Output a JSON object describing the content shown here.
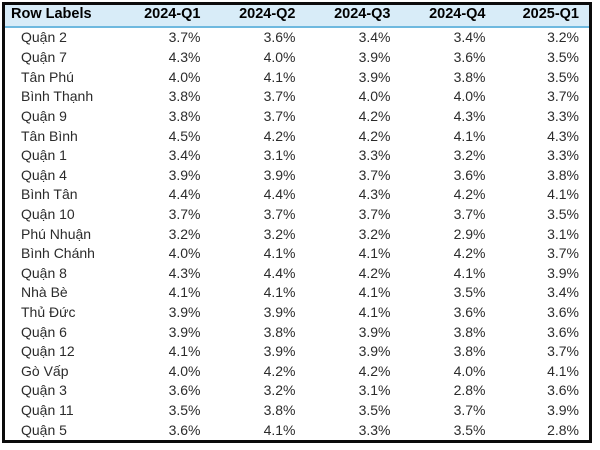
{
  "colors": {
    "header_bg": "#d8ecf8",
    "header_underline": "#6fb9df",
    "outer_border": "#0b0b0b",
    "header_text": "#000000",
    "body_text": "#2b2b2b",
    "background": "#ffffff"
  },
  "chart_data": {
    "type": "table",
    "title": "",
    "legend": false,
    "grid": false,
    "value_format": "percent",
    "columns": [
      "Row Labels",
      "2024-Q1",
      "2024-Q2",
      "2024-Q3",
      "2024-Q4",
      "2025-Q1"
    ],
    "rows": [
      {
        "label": "Quận 2",
        "values": [
          "3.7%",
          "3.6%",
          "3.4%",
          "3.4%",
          "3.2%"
        ]
      },
      {
        "label": "Quận 7",
        "values": [
          "4.3%",
          "4.0%",
          "3.9%",
          "3.6%",
          "3.5%"
        ]
      },
      {
        "label": "Tân Phú",
        "values": [
          "4.0%",
          "4.1%",
          "3.9%",
          "3.8%",
          "3.5%"
        ]
      },
      {
        "label": "Bình Thạnh",
        "values": [
          "3.8%",
          "3.7%",
          "4.0%",
          "4.0%",
          "3.7%"
        ]
      },
      {
        "label": "Quận 9",
        "values": [
          "3.8%",
          "3.7%",
          "4.2%",
          "4.3%",
          "3.3%"
        ]
      },
      {
        "label": "Tân Bình",
        "values": [
          "4.5%",
          "4.2%",
          "4.2%",
          "4.1%",
          "4.3%"
        ]
      },
      {
        "label": "Quận 1",
        "values": [
          "3.4%",
          "3.1%",
          "3.3%",
          "3.2%",
          "3.3%"
        ]
      },
      {
        "label": "Quận 4",
        "values": [
          "3.9%",
          "3.9%",
          "3.7%",
          "3.6%",
          "3.8%"
        ]
      },
      {
        "label": "Bình Tân",
        "values": [
          "4.4%",
          "4.4%",
          "4.3%",
          "4.2%",
          "4.1%"
        ]
      },
      {
        "label": "Quận 10",
        "values": [
          "3.7%",
          "3.7%",
          "3.7%",
          "3.7%",
          "3.5%"
        ]
      },
      {
        "label": "Phú Nhuận",
        "values": [
          "3.2%",
          "3.2%",
          "3.2%",
          "2.9%",
          "3.1%"
        ]
      },
      {
        "label": "Bình Chánh",
        "values": [
          "4.0%",
          "4.1%",
          "4.1%",
          "4.2%",
          "3.7%"
        ]
      },
      {
        "label": "Quận 8",
        "values": [
          "4.3%",
          "4.4%",
          "4.2%",
          "4.1%",
          "3.9%"
        ]
      },
      {
        "label": "Nhà Bè",
        "values": [
          "4.1%",
          "4.1%",
          "4.1%",
          "3.5%",
          "3.4%"
        ]
      },
      {
        "label": "Thủ Đức",
        "values": [
          "3.9%",
          "3.9%",
          "4.1%",
          "3.6%",
          "3.6%"
        ]
      },
      {
        "label": "Quận 6",
        "values": [
          "3.9%",
          "3.8%",
          "3.9%",
          "3.8%",
          "3.6%"
        ]
      },
      {
        "label": "Quận 12",
        "values": [
          "4.1%",
          "3.9%",
          "3.9%",
          "3.8%",
          "3.7%"
        ]
      },
      {
        "label": "Gò Vấp",
        "values": [
          "4.0%",
          "4.2%",
          "4.2%",
          "4.0%",
          "4.1%"
        ]
      },
      {
        "label": "Quận 3",
        "values": [
          "3.6%",
          "3.2%",
          "3.1%",
          "2.8%",
          "3.6%"
        ]
      },
      {
        "label": "Quận 11",
        "values": [
          "3.5%",
          "3.8%",
          "3.5%",
          "3.7%",
          "3.9%"
        ]
      },
      {
        "label": "Quận 5",
        "values": [
          "3.6%",
          "4.1%",
          "3.3%",
          "3.5%",
          "2.8%"
        ]
      }
    ]
  }
}
